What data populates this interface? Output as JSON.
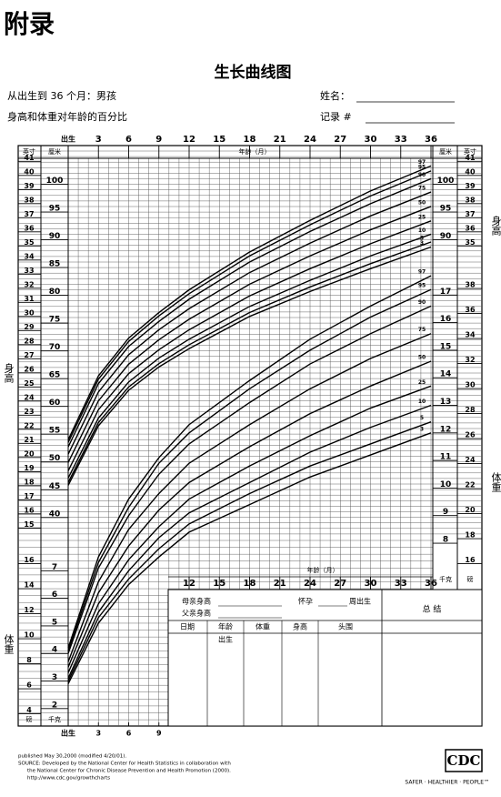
{
  "header": {
    "appendix": "附录",
    "title": "生长曲线图",
    "subtitle_1": "从出生到 36 个月：男孩",
    "subtitle_2": "身高和体重对年龄的百分比",
    "name_label": "姓名：",
    "record_label": "记录 #"
  },
  "chart_data": [
    {
      "type": "line",
      "x_label": "年龄（月）",
      "y_label": "身高",
      "y_unit": "厘米",
      "y2_unit": "英寸",
      "x": [
        0,
        3,
        6,
        9,
        12,
        18,
        24,
        30,
        36
      ],
      "xlim": [
        0,
        36
      ],
      "xticks": [
        {
          "value": 0,
          "label": "出生"
        },
        3,
        6,
        9,
        12,
        15,
        18,
        21,
        24,
        27,
        30,
        33,
        36
      ],
      "ylim": [
        38,
        105
      ],
      "yticks": [
        40,
        45,
        50,
        55,
        60,
        65,
        70,
        75,
        80,
        85,
        90,
        95,
        100
      ],
      "yticks_right": [
        90,
        95,
        100
      ],
      "y2lim": [
        14.96,
        41.34
      ],
      "y2ticks": [
        15,
        16,
        17,
        18,
        19,
        20,
        21,
        22,
        23,
        24,
        25,
        26,
        27,
        28,
        29,
        30,
        31,
        32,
        33,
        34,
        35,
        36,
        37,
        38,
        39,
        40,
        41
      ],
      "y2ticks_right": [
        35,
        36,
        37,
        38,
        39,
        40,
        41
      ],
      "color": "#000000",
      "series": [
        {
          "name": "97",
          "values": [
            54.0,
            65.5,
            72.3,
            76.9,
            81.0,
            87.8,
            93.5,
            98.8,
            103.3
          ]
        },
        {
          "name": "95",
          "values": [
            53.5,
            64.9,
            71.7,
            76.3,
            80.3,
            87.1,
            92.7,
            97.9,
            102.4
          ]
        },
        {
          "name": "90",
          "values": [
            52.7,
            64.1,
            70.8,
            75.3,
            79.3,
            86.0,
            91.5,
            96.5,
            101.0
          ]
        },
        {
          "name": "75",
          "values": [
            51.4,
            62.6,
            69.3,
            73.8,
            77.6,
            84.1,
            89.4,
            94.3,
            98.6
          ]
        },
        {
          "name": "50",
          "values": [
            49.9,
            61.0,
            67.6,
            72.0,
            75.7,
            82.0,
            87.1,
            91.8,
            96.0
          ]
        },
        {
          "name": "25",
          "values": [
            48.4,
            59.4,
            65.9,
            70.2,
            73.8,
            79.9,
            84.8,
            89.3,
            93.4
          ]
        },
        {
          "name": "10",
          "values": [
            47.1,
            57.9,
            64.4,
            68.7,
            72.1,
            78.0,
            82.7,
            87.1,
            91.0
          ]
        },
        {
          "name": "5",
          "values": [
            46.3,
            57.1,
            63.5,
            67.7,
            71.1,
            76.9,
            81.5,
            85.7,
            89.6
          ]
        },
        {
          "name": "3",
          "values": [
            45.8,
            56.5,
            62.9,
            67.1,
            70.4,
            76.2,
            80.7,
            84.8,
            88.7
          ]
        }
      ]
    },
    {
      "type": "line",
      "x_label": "年龄（月）",
      "y_label": "体重",
      "y_unit": "千克",
      "y2_unit": "磅",
      "x": [
        0,
        3,
        6,
        9,
        12,
        18,
        24,
        30,
        36
      ],
      "xlim": [
        0,
        36
      ],
      "xticks": [
        {
          "value": 0,
          "label": "出生"
        },
        3,
        6,
        9,
        12,
        15,
        18,
        21,
        24,
        27,
        30,
        33,
        36
      ],
      "ylim": [
        1.5,
        18
      ],
      "yticks": [
        2,
        3,
        4,
        5,
        6,
        7
      ],
      "yticks_right": [
        8,
        9,
        10,
        11,
        12,
        13,
        14,
        15,
        16,
        17
      ],
      "y2lim": [
        3.31,
        39.68
      ],
      "y2ticks": [
        4,
        6,
        8,
        10,
        12,
        14,
        16
      ],
      "y2ticks_right": [
        16,
        18,
        20,
        22,
        24,
        26,
        28,
        30,
        32,
        34,
        36,
        38
      ],
      "color": "#000000",
      "series": [
        {
          "name": "97",
          "values": [
            4.2,
            7.5,
            9.6,
            11.1,
            12.3,
            13.9,
            15.4,
            16.6,
            17.7
          ]
        },
        {
          "name": "95",
          "values": [
            4.1,
            7.3,
            9.3,
            10.9,
            12.0,
            13.6,
            15.0,
            16.2,
            17.2
          ]
        },
        {
          "name": "90",
          "values": [
            4.0,
            7.1,
            9.0,
            10.5,
            11.6,
            13.1,
            14.5,
            15.6,
            16.6
          ]
        },
        {
          "name": "75",
          "values": [
            3.7,
            6.6,
            8.5,
            9.8,
            10.9,
            12.3,
            13.6,
            14.7,
            15.6
          ]
        },
        {
          "name": "50",
          "values": [
            3.5,
            6.2,
            7.9,
            9.2,
            10.2,
            11.5,
            12.7,
            13.7,
            14.6
          ]
        },
        {
          "name": "25",
          "values": [
            3.3,
            5.8,
            7.4,
            8.6,
            9.6,
            10.8,
            11.9,
            12.9,
            13.7
          ]
        },
        {
          "name": "10",
          "values": [
            3.1,
            5.5,
            7.0,
            8.2,
            9.1,
            10.2,
            11.3,
            12.2,
            13.0
          ]
        },
        {
          "name": "5",
          "values": [
            3.0,
            5.3,
            6.7,
            7.8,
            8.7,
            9.8,
            10.8,
            11.6,
            12.4
          ]
        },
        {
          "name": "3",
          "values": [
            2.9,
            5.1,
            6.5,
            7.5,
            8.4,
            9.4,
            10.4,
            11.2,
            12.0
          ]
        }
      ]
    }
  ],
  "record_table": {
    "mother_height": "母亲身高",
    "father_height": "父亲身高",
    "gestation_prefix": "怀孕",
    "gestation_suffix": "周出生",
    "summary": "总 结",
    "columns": [
      "日期",
      "年龄",
      "体重",
      "身高",
      "头围"
    ],
    "birth": "出生"
  },
  "footer": {
    "lines": [
      "published May 30,2000 (modified 4/20/01).",
      "SOURCE: Developed by the National Center for Health Statistics in collaboration with",
      "the National Center for Chronic Disease Prevention and Health Promotion (2000).",
      "http://www.cdc.gov/growthcharts"
    ],
    "logo": "CDC",
    "tagline": "SAFER · HEALTHIER · PEOPLE™"
  }
}
